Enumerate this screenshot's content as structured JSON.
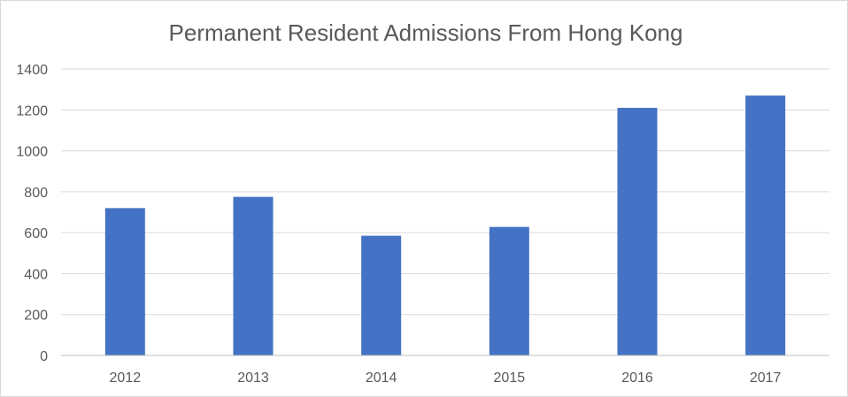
{
  "chart_data": {
    "type": "bar",
    "title": "Permanent Resident Admissions From Hong Kong",
    "xlabel": "",
    "ylabel": "",
    "categories": [
      "2012",
      "2013",
      "2014",
      "2015",
      "2016",
      "2017"
    ],
    "series": [
      {
        "values": [
          720,
          775,
          585,
          628,
          1210,
          1270
        ],
        "color": "#4472C4"
      }
    ],
    "ylim": [
      0,
      1400
    ],
    "yticks": [
      0,
      200,
      400,
      600,
      800,
      1000,
      1200,
      1400
    ],
    "grid": true,
    "legend": "none"
  }
}
